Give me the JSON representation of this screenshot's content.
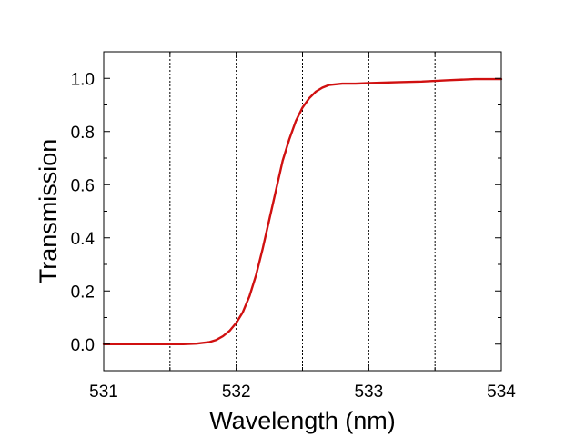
{
  "chart_data": {
    "type": "line",
    "title": "",
    "xlabel": "Wavelength (nm)",
    "ylabel": "Transmission",
    "xlim": [
      531,
      534
    ],
    "ylim": [
      -0.1,
      1.1
    ],
    "xticks": [
      531,
      532,
      533,
      534
    ],
    "xtick_labels": [
      "531",
      "532",
      "533",
      "534"
    ],
    "yticks": [
      0.0,
      0.2,
      0.4,
      0.6,
      0.8,
      1.0
    ],
    "ytick_labels": [
      "0.0",
      "0.2",
      "0.4",
      "0.6",
      "0.8",
      "1.0"
    ],
    "vertical_dotted_lines": [
      531.5,
      532.0,
      532.5,
      533.0,
      533.5
    ],
    "grid": false,
    "legend": "none",
    "colors": {
      "series": "#d01010",
      "axes": "#000000",
      "gridlines": "#000000"
    },
    "series": [
      {
        "x": [
          531.0,
          531.2,
          531.4,
          531.6,
          531.7,
          531.8,
          531.85,
          531.9,
          531.95,
          532.0,
          532.05,
          532.1,
          532.15,
          532.2,
          532.25,
          532.3,
          532.35,
          532.4,
          532.45,
          532.5,
          532.55,
          532.6,
          532.65,
          532.7,
          532.8,
          532.9,
          533.0,
          533.2,
          533.4,
          533.6,
          533.8,
          534.0
        ],
        "y": [
          0.0,
          0.0,
          0.0,
          0.0,
          0.002,
          0.008,
          0.016,
          0.03,
          0.05,
          0.08,
          0.12,
          0.18,
          0.26,
          0.36,
          0.47,
          0.58,
          0.69,
          0.77,
          0.84,
          0.89,
          0.925,
          0.95,
          0.965,
          0.975,
          0.98,
          0.98,
          0.982,
          0.985,
          0.988,
          0.993,
          0.997,
          0.997
        ]
      }
    ]
  }
}
